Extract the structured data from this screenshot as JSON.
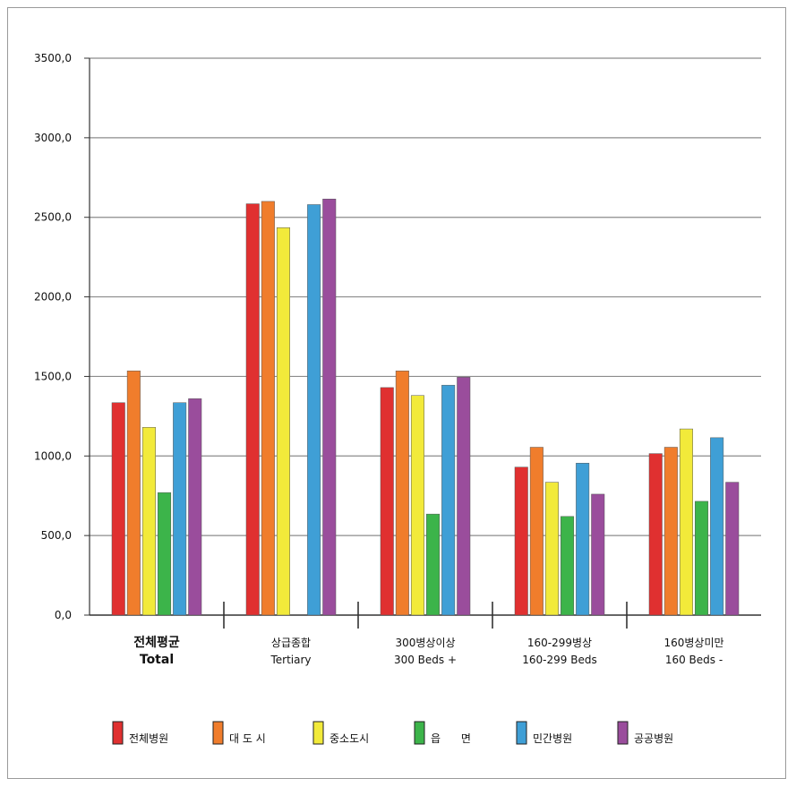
{
  "chart_data": {
    "type": "bar",
    "ylim": [
      0,
      3500
    ],
    "yticks": [
      "0,0",
      "500,0",
      "1000,0",
      "1500,0",
      "2000,0",
      "2500,0",
      "3000,0",
      "3500,0"
    ],
    "grid": true,
    "legend_position": "bottom",
    "categories": [
      {
        "line1": "전체평균",
        "line2": "Total",
        "emphasis": true
      },
      {
        "line1": "상급종합",
        "line2": "Tertiary",
        "emphasis": false
      },
      {
        "line1": "300병상이상",
        "line2": "300 Beds +",
        "emphasis": false
      },
      {
        "line1": "160-299병상",
        "line2": "160-299 Beds",
        "emphasis": false
      },
      {
        "line1": "160병상미만",
        "line2": "160 Beds -",
        "emphasis": false
      }
    ],
    "series": [
      {
        "name": "전체병원",
        "color": "#e03030",
        "values": [
          1335,
          2585,
          1430,
          930,
          1015
        ]
      },
      {
        "name": "대 도 시",
        "color": "#f07d2c",
        "values": [
          1535,
          2600,
          1535,
          1055,
          1055
        ]
      },
      {
        "name": "중소도시",
        "color": "#f2ea3a",
        "values": [
          1180,
          2435,
          1380,
          835,
          1170
        ]
      },
      {
        "name": "읍      면",
        "color": "#3cb44a",
        "values": [
          770,
          null,
          635,
          620,
          715
        ]
      },
      {
        "name": "민간병원",
        "color": "#3f9fd6",
        "values": [
          1335,
          2580,
          1445,
          955,
          1115
        ]
      },
      {
        "name": "공공병원",
        "color": "#9a4d9c",
        "values": [
          1360,
          2615,
          1495,
          760,
          835
        ]
      }
    ]
  }
}
